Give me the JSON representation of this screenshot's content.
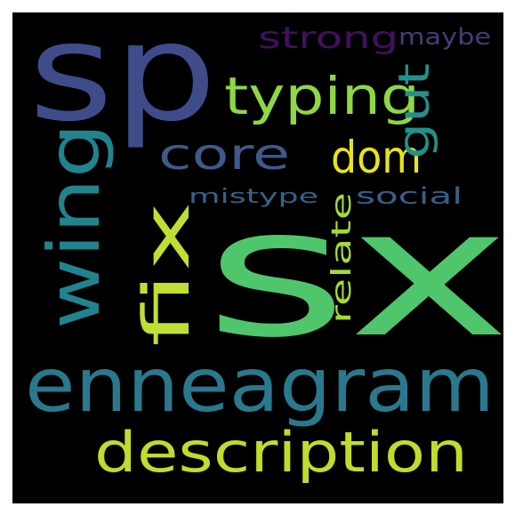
{
  "wordcloud": {
    "background": "#000000",
    "words": [
      {
        "key": "sx",
        "text": "sx",
        "color": "#4fc66c"
      },
      {
        "key": "sp",
        "text": "sp",
        "color": "#3e4c8a"
      },
      {
        "key": "enneagram",
        "text": "enneagram",
        "color": "#2a788e"
      },
      {
        "key": "description",
        "text": "description",
        "color": "#c0dc2c"
      },
      {
        "key": "wing",
        "text": "wing",
        "color": "#21838e"
      },
      {
        "key": "fix",
        "text": "fix",
        "color": "#bfdf34"
      },
      {
        "key": "typing",
        "text": "typing",
        "color": "#8fd744"
      },
      {
        "key": "dom",
        "text": "dom",
        "color": "#e7e419"
      },
      {
        "key": "core",
        "text": "core",
        "color": "#3e5a8c"
      },
      {
        "key": "gut",
        "text": "gut",
        "color": "#22918c"
      },
      {
        "key": "relate",
        "text": "relate",
        "color": "#a5da35"
      },
      {
        "key": "strong",
        "text": "strong",
        "color": "#440f5f"
      },
      {
        "key": "maybe",
        "text": "maybe",
        "color": "#463b7a"
      },
      {
        "key": "mistype",
        "text": "mistype",
        "color": "#33638d"
      },
      {
        "key": "social",
        "text": "social",
        "color": "#345f8d"
      }
    ]
  }
}
